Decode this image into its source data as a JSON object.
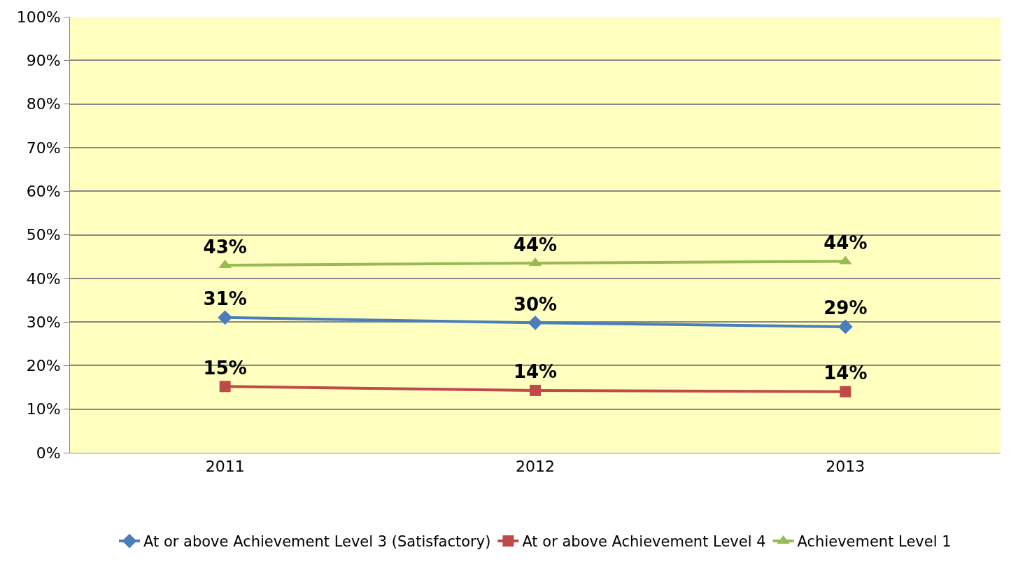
{
  "chart_data": {
    "type": "line",
    "categories": [
      "2011",
      "2012",
      "2013"
    ],
    "series": [
      {
        "name": "At or above Achievement Level 3 (Satisfactory)",
        "color": "#4a7ebb",
        "marker": "diamond",
        "values": [
          31,
          29.8,
          28.9
        ],
        "value_labels": [
          "31%",
          "30%",
          "29%"
        ]
      },
      {
        "name": "At or above Achievement Level 4",
        "color": "#be4b48",
        "marker": "square",
        "values": [
          15.2,
          14.3,
          14
        ],
        "value_labels": [
          "15%",
          "14%",
          "14%"
        ]
      },
      {
        "name": "Achievement Level 1",
        "color": "#98b954",
        "marker": "triangle",
        "values": [
          43,
          43.5,
          43.9
        ],
        "value_labels": [
          "43%",
          "44%",
          "44%"
        ]
      }
    ],
    "ylim": [
      0,
      100
    ],
    "yticks": [
      {
        "value": 0,
        "label": "0%"
      },
      {
        "value": 10,
        "label": "10%"
      },
      {
        "value": 20,
        "label": "20%"
      },
      {
        "value": 30,
        "label": "30%"
      },
      {
        "value": 40,
        "label": "40%"
      },
      {
        "value": 50,
        "label": "50%"
      },
      {
        "value": 60,
        "label": "60%"
      },
      {
        "value": 70,
        "label": "70%"
      },
      {
        "value": 80,
        "label": "80%"
      },
      {
        "value": 90,
        "label": "90%"
      },
      {
        "value": 100,
        "label": "100%"
      }
    ],
    "grid": "y",
    "legend": "bottom"
  }
}
